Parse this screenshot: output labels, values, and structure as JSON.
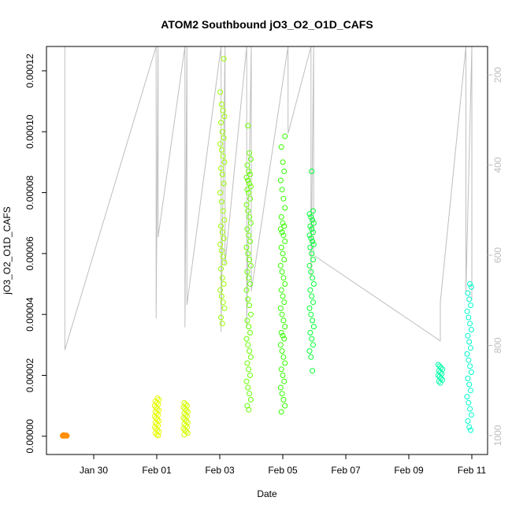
{
  "chart_data": {
    "type": "scatter",
    "title": "ATOM2 Southbound jO3_O2_O1D_CAFS",
    "xlabel": "Date",
    "ylabel": "jO3_O2_O1D_CAFS",
    "x_axis": {
      "type": "date",
      "range": [
        "2017-01-28T12:00",
        "2017-02-11T12:00"
      ],
      "ticks": [
        {
          "value": "2017-01-30",
          "label": "Jan 30"
        },
        {
          "value": "2017-02-01",
          "label": "Feb 01"
        },
        {
          "value": "2017-02-03",
          "label": "Feb 03"
        },
        {
          "value": "2017-02-05",
          "label": "Feb 05"
        },
        {
          "value": "2017-02-07",
          "label": "Feb 07"
        },
        {
          "value": "2017-02-09",
          "label": "Feb 09"
        },
        {
          "value": "2017-02-11",
          "label": "Feb 11"
        }
      ]
    },
    "y_axis": {
      "range": [
        -6e-06,
        0.000128
      ],
      "ticks": [
        {
          "value": 0,
          "label": "0.00000"
        },
        {
          "value": 2e-05,
          "label": "0.00002"
        },
        {
          "value": 4e-05,
          "label": "0.00004"
        },
        {
          "value": 6e-05,
          "label": "0.00006"
        },
        {
          "value": 8e-05,
          "label": "0.00008"
        },
        {
          "value": 0.0001,
          "label": "0.00010"
        },
        {
          "value": 0.00012,
          "label": "0.00012"
        }
      ]
    },
    "y2_axis": {
      "label": "",
      "inverted": true,
      "range": [
        1042,
        137
      ],
      "ticks": [
        {
          "value": 200,
          "label": "200"
        },
        {
          "value": 400,
          "label": "400"
        },
        {
          "value": 600,
          "label": "600"
        },
        {
          "value": 800,
          "label": "800"
        },
        {
          "value": 1000,
          "label": "1000"
        }
      ]
    },
    "grid": false,
    "legend": "none",
    "altitude_trace_color": "#bebebe",
    "clusters": [
      {
        "date": "2017-01-29T02:00",
        "color": "#ff8c00",
        "values": [
          1e-07,
          2e-07,
          3e-07,
          1e-07,
          4e-07,
          2e-07,
          3e-07,
          2e-07,
          1e-07,
          2e-07
        ]
      },
      {
        "date": "2017-02-01T00:00",
        "color": "#e6ff00",
        "values": [
          1.25e-05,
          1.2e-05,
          1.15e-05,
          1.1e-05,
          1.05e-05,
          1e-05,
          9.5e-06,
          9e-06,
          8.5e-06,
          8e-06,
          7.5e-06,
          7e-06,
          6.5e-06,
          6e-06,
          5.5e-06,
          5e-06,
          4.5e-06,
          4e-06,
          3.5e-06,
          3e-06,
          2.5e-06,
          2e-06,
          1.5e-06,
          1e-06,
          5e-07,
          2e-07
        ]
      },
      {
        "date": "2017-02-01T22:00",
        "color": "#d4ff00",
        "values": [
          1.1e-05,
          1.05e-05,
          1e-05,
          9.5e-06,
          9e-06,
          8.5e-06,
          8e-06,
          7.5e-06,
          7e-06,
          6.5e-06,
          6e-06,
          5.5e-06,
          5e-06,
          4.5e-06,
          4e-06,
          3.5e-06,
          3e-06,
          2.5e-06,
          2e-06,
          1.5e-06,
          1e-06,
          5e-07
        ]
      },
      {
        "date": "2017-02-03T02:00",
        "color": "#99ff00",
        "values": [
          0.000124,
          0.000113,
          0.000109,
          0.000107,
          0.000105,
          0.000103,
          0.0001,
          9.8e-05,
          9.6e-05,
          9.4e-05,
          9.2e-05,
          9e-05,
          8.8e-05,
          8.6e-05,
          8.3e-05,
          8e-05,
          7.7e-05,
          7.4e-05,
          7.1e-05,
          6.9e-05,
          6.7e-05,
          6.5e-05,
          6.3e-05,
          6.1e-05,
          5.9e-05,
          5.7e-05,
          5.5e-05,
          5.2e-05,
          5e-05,
          4.8e-05,
          4.6e-05,
          4.4e-05,
          4.2e-05,
          3.9e-05,
          3.7e-05
        ]
      },
      {
        "date": "2017-02-03T22:00",
        "color": "#66ff00",
        "values": [
          0.000102,
          9.3e-05,
          9.1e-05,
          8.9e-05,
          8.7e-05,
          8.6e-05,
          8.5e-05,
          8.4e-05,
          8.3e-05,
          8.2e-05,
          8.1e-05,
          8e-05,
          7.8e-05,
          7.6e-05,
          7.4e-05,
          7.2e-05,
          7e-05,
          6.8e-05,
          6.6e-05,
          6.4e-05,
          6.2e-05,
          6e-05,
          5.8e-05,
          5.6e-05,
          5.4e-05,
          5.2e-05,
          5e-05,
          4.8e-05,
          4.5e-05,
          4.3e-05,
          4e-05,
          3.8e-05,
          3.6e-05,
          3.4e-05,
          3.2e-05,
          3e-05,
          2.8e-05,
          2.6e-05,
          2.4e-05,
          2.2e-05,
          2e-05,
          1.8e-05,
          1.6e-05,
          1.4e-05,
          1.2e-05,
          1e-05,
          8.7e-06
        ]
      },
      {
        "date": "2017-02-05T00:00",
        "color": "#33ff00",
        "values": [
          9.85e-05,
          9.5e-05,
          9e-05,
          8.7e-05,
          8.4e-05,
          8.1e-05,
          7.8e-05,
          7.5e-05,
          7.2e-05,
          7e-05,
          6.9e-05,
          6.8e-05,
          6.7e-05,
          6.6e-05,
          6.4e-05,
          6.2e-05,
          6e-05,
          5.8e-05,
          5.6e-05,
          5.4e-05,
          5.2e-05,
          5e-05,
          4.8e-05,
          4.6e-05,
          4.4e-05,
          4.2e-05,
          4e-05,
          3.8e-05,
          3.6e-05,
          3.4e-05,
          3.3e-05,
          3.2e-05,
          3e-05,
          2.8e-05,
          2.6e-05,
          2.4e-05,
          2.2e-05,
          2e-05,
          1.8e-05,
          1.6e-05,
          1.4e-05,
          1.2e-05,
          1e-05,
          8e-06
        ]
      },
      {
        "date": "2017-02-05T22:00",
        "color": "#00ff33",
        "values": [
          8.7e-05,
          7.4e-05,
          7.3e-05,
          7.2e-05,
          7.1e-05,
          7e-05,
          6.9e-05,
          6.8e-05,
          6.7e-05,
          6.6e-05,
          6.5e-05,
          6.4e-05,
          6.3e-05,
          6.2e-05,
          6e-05,
          5.8e-05,
          5.6e-05,
          5.4e-05,
          5.2e-05,
          5e-05,
          4.8e-05,
          4.6e-05,
          4.4e-05,
          4.2e-05,
          4e-05,
          3.8e-05,
          3.6e-05,
          3.4e-05,
          3.2e-05,
          3e-05,
          2.8e-05,
          2.6e-05,
          2.15e-05
        ]
      },
      {
        "date": "2017-02-10T00:00",
        "color": "#00ffaa",
        "values": [
          2.35e-05,
          2.3e-05,
          2.25e-05,
          2.2e-05,
          2.15e-05,
          2.1e-05,
          2.05e-05,
          2e-05,
          1.95e-05,
          1.9e-05,
          1.85e-05,
          1.8e-05,
          1.75e-05
        ]
      },
      {
        "date": "2017-02-10T22:00",
        "color": "#00ffcc",
        "values": [
          5e-05,
          4.9e-05,
          4.7e-05,
          4.5e-05,
          4.3e-05,
          4.1e-05,
          3.9e-05,
          3.7e-05,
          3.5e-05,
          3.3e-05,
          3.1e-05,
          2.9e-05,
          2.7e-05,
          2.5e-05,
          2.3e-05,
          2.1e-05,
          1.9e-05,
          1.7e-05,
          1.5e-05,
          1.3e-05,
          1.1e-05,
          9e-06,
          7e-06,
          5e-06,
          3e-06,
          2e-06
        ]
      }
    ],
    "altitude_trace": [
      {
        "date": "2017-01-29T02:00",
        "alt": 137
      },
      {
        "date": "2017-01-29T02:00",
        "alt": 810
      },
      {
        "date": "2017-01-31T23:30",
        "alt": 137
      },
      {
        "date": "2017-01-31T23:30",
        "alt": 740
      },
      {
        "date": "2017-02-01T01:00",
        "alt": 137
      },
      {
        "date": "2017-02-01T01:00",
        "alt": 560
      },
      {
        "date": "2017-02-01T21:30",
        "alt": 137
      },
      {
        "date": "2017-02-01T21:30",
        "alt": 760
      },
      {
        "date": "2017-02-01T23:00",
        "alt": 137
      },
      {
        "date": "2017-02-01T23:00",
        "alt": 710
      },
      {
        "date": "2017-02-03T01:00",
        "alt": 137
      },
      {
        "date": "2017-02-03T01:00",
        "alt": 770
      },
      {
        "date": "2017-02-03T04:00",
        "alt": 137
      },
      {
        "date": "2017-02-03T04:00",
        "alt": 620
      },
      {
        "date": "2017-02-03T20:30",
        "alt": 137
      },
      {
        "date": "2017-02-03T20:30",
        "alt": 760
      },
      {
        "date": "2017-02-04T00:00",
        "alt": 137
      },
      {
        "date": "2017-02-04T00:00",
        "alt": 680
      },
      {
        "date": "2017-02-05T04:00",
        "alt": 137
      },
      {
        "date": "2017-02-05T04:00",
        "alt": 330
      },
      {
        "date": "2017-02-05T21:30",
        "alt": 137
      },
      {
        "date": "2017-02-05T21:30",
        "alt": 650
      },
      {
        "date": "2017-02-05T23:30",
        "alt": 137
      },
      {
        "date": "2017-02-05T23:30",
        "alt": 600
      },
      {
        "date": "2017-02-10T00:00",
        "alt": 790
      },
      {
        "date": "2017-02-10T00:00",
        "alt": 705
      },
      {
        "date": "2017-02-10T19:30",
        "alt": 137
      },
      {
        "date": "2017-02-10T19:30",
        "alt": 680
      },
      {
        "date": "2017-02-11T00:00",
        "alt": 137
      },
      {
        "date": "2017-02-11T00:00",
        "alt": 700
      }
    ]
  }
}
